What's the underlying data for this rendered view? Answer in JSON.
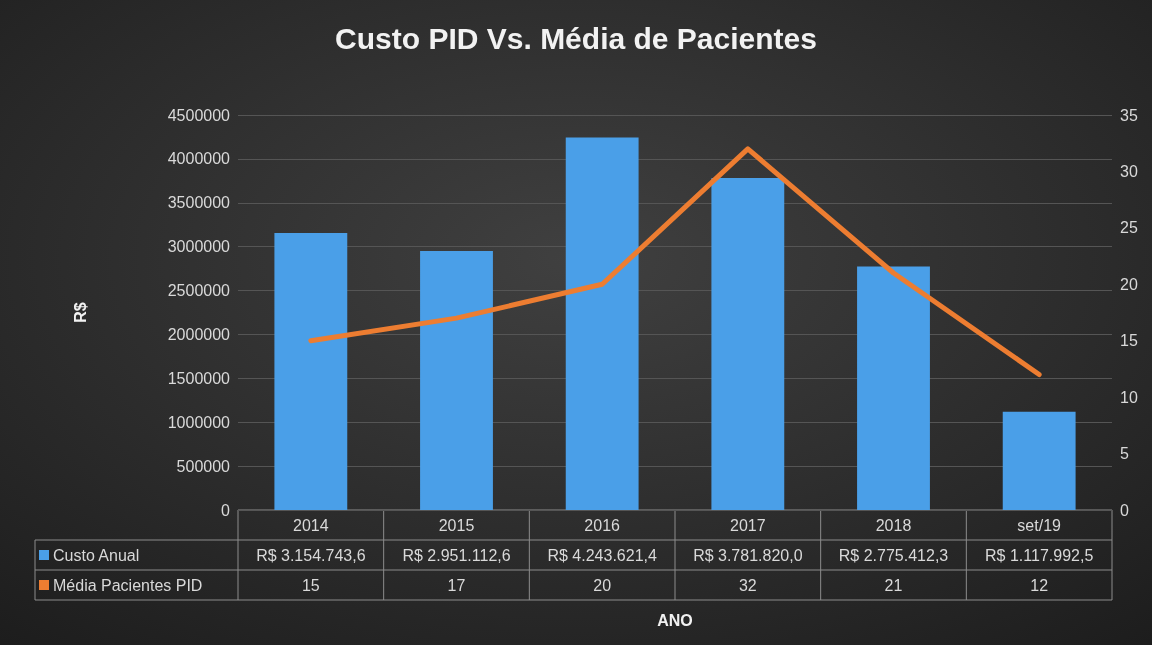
{
  "chart_data": {
    "type": "bar",
    "title": "Custo PID Vs. Média de Pacientes",
    "xlabel": "ANO",
    "ylabel": "R$",
    "categories": [
      "2014",
      "2015",
      "2016",
      "2017",
      "2018",
      "set/19"
    ],
    "series": [
      {
        "name": "Custo Anual",
        "color": "#4a9fe8",
        "values": [
          3154743.6,
          2951112.6,
          4243621.4,
          3781820.0,
          2775412.3,
          1117992.5
        ],
        "value_labels": [
          "R$ 3.154.743,6",
          "R$ 2.951.112,6",
          "R$ 4.243.621,4",
          "R$ 3.781.820,0",
          "R$ 2.775.412,3",
          "R$ 1.117.992,5"
        ]
      },
      {
        "name": "Média Pacientes PID",
        "type": "line",
        "axis": "y2",
        "color": "#ed7d31",
        "values": [
          15,
          17,
          20,
          32,
          21,
          12
        ],
        "value_labels": [
          "15",
          "17",
          "20",
          "32",
          "21",
          "12"
        ]
      }
    ],
    "ylim": [
      0,
      4500000
    ],
    "yticks": [
      0,
      500000,
      1000000,
      1500000,
      2000000,
      2500000,
      3000000,
      3500000,
      4000000,
      4500000
    ],
    "y2lim": [
      0,
      35
    ],
    "y2ticks": [
      0,
      5,
      10,
      15,
      20,
      25,
      30,
      35
    ],
    "grid": "y",
    "legend": "bottom left",
    "marker": "none"
  }
}
